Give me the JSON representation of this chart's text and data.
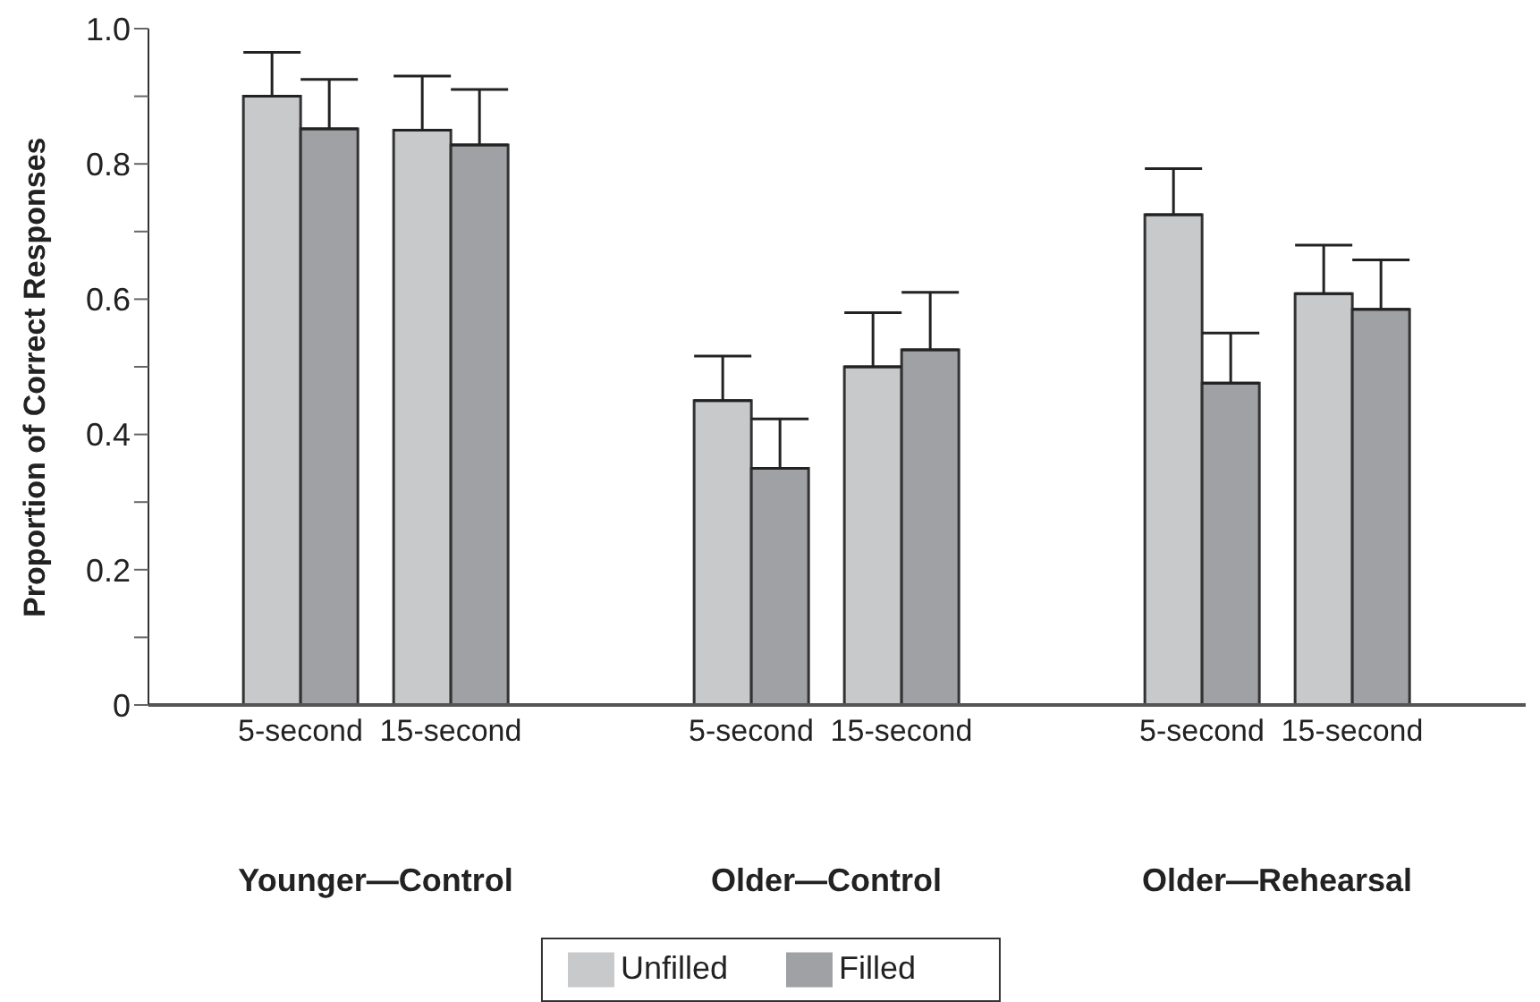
{
  "chart_data": {
    "type": "bar",
    "ylabel": "Proportion of Correct Responses",
    "categories": [
      "5-second",
      "15-second",
      null,
      "5-second",
      "15-second",
      null,
      "5-second",
      "15-second"
    ],
    "series": [
      {
        "name": "Unfilled",
        "color": "#c8c9cb",
        "values": [
          0.9,
          0.85,
          null,
          0.45,
          0.5,
          null,
          0.725,
          0.608
        ],
        "errors": [
          [
            0.9,
            0.965
          ],
          [
            0.85,
            0.93
          ],
          null,
          [
            0.45,
            0.516
          ],
          [
            0.5,
            0.58
          ],
          null,
          [
            0.725,
            0.793
          ],
          [
            0.608,
            0.68
          ]
        ]
      },
      {
        "name": "Filled",
        "color": "#a0a1a5",
        "values": [
          0.852,
          0.828,
          null,
          0.35,
          0.525,
          null,
          0.476,
          0.585
        ],
        "errors": [
          [
            0.852,
            0.925
          ],
          [
            0.828,
            0.91
          ],
          null,
          [
            0.35,
            0.423
          ],
          [
            0.525,
            0.61
          ],
          null,
          [
            0.476,
            0.55
          ],
          [
            0.585,
            0.658
          ]
        ]
      }
    ],
    "annotations": [
      "Younger—Control",
      "Older—Control",
      "Older—Rehearsal"
    ],
    "ylim": [
      0,
      1
    ],
    "yticks": [
      0,
      {
        "value": 0.1,
        "label": null
      },
      0.2,
      {
        "value": 0.3,
        "label": null
      },
      0.4,
      {
        "value": 0.5,
        "label": null
      },
      0.6,
      {
        "value": 0.7,
        "label": null
      },
      0.8,
      {
        "value": 0.9,
        "label": null
      },
      {
        "value": 1,
        "label": "1.0"
      }
    ],
    "legend": "bottom",
    "grid": false
  }
}
